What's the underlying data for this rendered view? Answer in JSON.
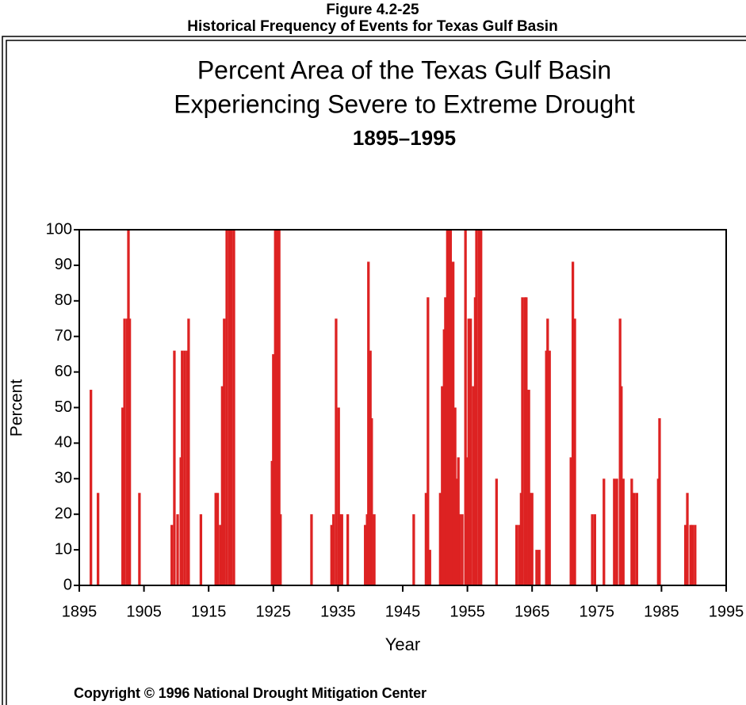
{
  "header": {
    "figure": "Figure 4.2-25",
    "caption": "Historical Frequency of Events for Texas Gulf Basin"
  },
  "chart_data": {
    "type": "bar",
    "title": "Percent Area of the Texas Gulf Basin",
    "subtitle": "Experiencing Severe to Extreme Drought",
    "period": "1895–1995",
    "x_label": "Year",
    "y_label": "Percent",
    "footer": "Copyright © 1996 National Drought Mitigation Center",
    "color": "#dd2222",
    "x": [
      1896.8,
      1897.9,
      1901.7,
      1902.0,
      1902.4,
      1902.6,
      1902.8,
      1904.3,
      1909.3,
      1909.7,
      1910.2,
      1910.7,
      1910.9,
      1911.3,
      1911.7,
      1911.9,
      1913.8,
      1916.1,
      1916.4,
      1916.8,
      1917.1,
      1917.4,
      1917.8,
      1918.2,
      1918.5,
      1918.9,
      1924.8,
      1925.0,
      1925.3,
      1925.6,
      1925.9,
      1926.1,
      1930.9,
      1934.0,
      1934.3,
      1934.7,
      1935.1,
      1935.3,
      1935.6,
      1936.5,
      1939.2,
      1939.5,
      1939.7,
      1940.0,
      1940.2,
      1940.6,
      1946.7,
      1948.6,
      1948.9,
      1949.2,
      1950.8,
      1951.1,
      1951.4,
      1951.6,
      1951.9,
      1952.1,
      1952.4,
      1952.6,
      1952.8,
      1953.1,
      1953.3,
      1953.6,
      1953.8,
      1954.2,
      1954.7,
      1954.9,
      1955.2,
      1955.5,
      1955.9,
      1956.2,
      1956.4,
      1956.8,
      1957.1,
      1959.5,
      1962.6,
      1963.0,
      1963.3,
      1963.5,
      1963.9,
      1964.1,
      1964.5,
      1964.7,
      1965.0,
      1965.7,
      1966.1,
      1967.2,
      1967.4,
      1967.7,
      1971.0,
      1971.3,
      1971.6,
      1974.3,
      1974.7,
      1976.1,
      1977.7,
      1978.1,
      1978.6,
      1978.8,
      1979.1,
      1980.4,
      1980.8,
      1981.2,
      1984.5,
      1984.7,
      1988.7,
      1989.0,
      1989.5,
      1989.8,
      1990.2
    ],
    "values": [
      55,
      26,
      50,
      75,
      75,
      100,
      75,
      26,
      17,
      66,
      20,
      36,
      66,
      66,
      66,
      75,
      20,
      26,
      26,
      17,
      56,
      75,
      100,
      100,
      100,
      100,
      35,
      65,
      100,
      100,
      100,
      20,
      20,
      17,
      20,
      75,
      50,
      20,
      20,
      20,
      17,
      20,
      91,
      66,
      47,
      20,
      20,
      26,
      81,
      10,
      26,
      56,
      72,
      81,
      100,
      100,
      100,
      66,
      91,
      50,
      30,
      36,
      20,
      20,
      100,
      36,
      75,
      75,
      56,
      81,
      100,
      100,
      100,
      30,
      17,
      17,
      26,
      81,
      81,
      81,
      55,
      26,
      26,
      10,
      10,
      66,
      75,
      66,
      36,
      91,
      75,
      20,
      20,
      30,
      30,
      30,
      75,
      56,
      30,
      30,
      26,
      26,
      30,
      47,
      17,
      26,
      17,
      17,
      17
    ],
    "xlim": [
      1895,
      1995
    ],
    "xticks": [
      1895,
      1905,
      1915,
      1925,
      1935,
      1945,
      1955,
      1965,
      1975,
      1985,
      1995
    ],
    "ylim": [
      0,
      100
    ],
    "yticks": [
      0,
      10,
      20,
      30,
      40,
      50,
      60,
      70,
      80,
      90,
      100
    ]
  }
}
